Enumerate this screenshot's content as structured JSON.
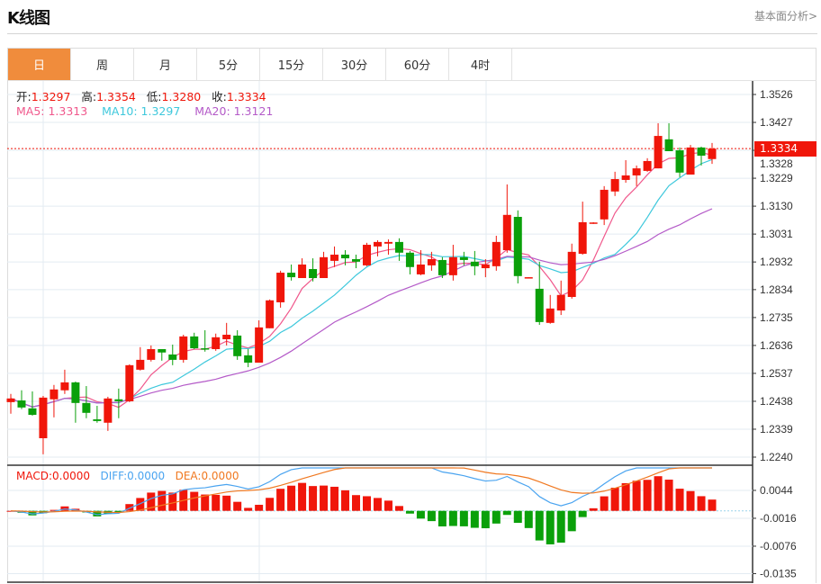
{
  "header": {
    "title": "K线图",
    "link": "基本面分析>"
  },
  "tabs": [
    {
      "label": "日",
      "active": true
    },
    {
      "label": "周"
    },
    {
      "label": "月"
    },
    {
      "label": "5分"
    },
    {
      "label": "15分"
    },
    {
      "label": "30分"
    },
    {
      "label": "60分"
    },
    {
      "label": "4时"
    }
  ],
  "ohlc_legend": {
    "open_label": "开:",
    "open": "1.3297",
    "high_label": "高:",
    "high": "1.3354",
    "low_label": "低:",
    "low": "1.3280",
    "close_label": "收:",
    "close": "1.3334"
  },
  "ma_legend": {
    "ma5": "MA5: 1.3313",
    "ma10": "MA10: 1.3297",
    "ma20": "MA20: 1.3121"
  },
  "macd_legend": {
    "macd": "MACD:0.0000",
    "diff": "DIFF:0.0000",
    "dea": "DEA:0.0000"
  },
  "current_price": "1.3334",
  "colors": {
    "up": "#f0160a",
    "down": "#0aa00a",
    "ma5": "#f0588c",
    "ma10": "#3ec8dc",
    "ma20": "#b45ac8",
    "diff": "#4aa4f0",
    "dea": "#f07820",
    "tab_active": "#f08c3c"
  },
  "chart_data": {
    "type": "candlestick",
    "title": "K线图",
    "price_axis": {
      "ticks": [
        "1.3526",
        "1.3427",
        "1.3328",
        "1.3229",
        "1.3130",
        "1.3031",
        "1.2932",
        "1.2834",
        "1.2735",
        "1.2636",
        "1.2537",
        "1.2438",
        "1.2339",
        "1.2240"
      ],
      "range": [
        1.224,
        1.3526
      ]
    },
    "macd_axis": {
      "ticks": [
        "0.0044",
        "-0.0016",
        "-0.0076",
        "-0.0135"
      ],
      "range": [
        -0.0155,
        0.006
      ]
    },
    "candles": [
      [
        1.2435,
        1.2464,
        1.2394,
        1.2448
      ],
      [
        1.2441,
        1.2477,
        1.241,
        1.2416
      ],
      [
        1.2413,
        1.2473,
        1.2387,
        1.239
      ],
      [
        1.2307,
        1.2457,
        1.225,
        1.2451
      ],
      [
        1.2445,
        1.2496,
        1.2381,
        1.248
      ],
      [
        1.2477,
        1.255,
        1.2464,
        1.2505
      ],
      [
        1.2505,
        1.2508,
        1.2362,
        1.2432
      ],
      [
        1.2432,
        1.2492,
        1.2378,
        1.2397
      ],
      [
        1.2374,
        1.2422,
        1.2362,
        1.2368
      ],
      [
        1.2362,
        1.2454,
        1.2333,
        1.2448
      ],
      [
        1.2445,
        1.2483,
        1.2378,
        1.2438
      ],
      [
        1.2438,
        1.2569,
        1.2435,
        1.2566
      ],
      [
        1.255,
        1.263,
        1.2547,
        1.2585
      ],
      [
        1.2585,
        1.2636,
        1.2579,
        1.2623
      ],
      [
        1.2623,
        1.2623,
        1.2582,
        1.2611
      ],
      [
        1.2604,
        1.2639,
        1.2566,
        1.2585
      ],
      [
        1.2585,
        1.2674,
        1.2575,
        1.2668
      ],
      [
        1.2668,
        1.2681,
        1.2623,
        1.2626
      ],
      [
        1.2626,
        1.269,
        1.2614,
        1.2623
      ],
      [
        1.2623,
        1.2678,
        1.2617,
        1.2665
      ],
      [
        1.2658,
        1.2716,
        1.2636,
        1.2674
      ],
      [
        1.2671,
        1.269,
        1.2585,
        1.2598
      ],
      [
        1.2601,
        1.2623,
        1.2559,
        1.2575
      ],
      [
        1.2575,
        1.2725,
        1.2575,
        1.27
      ],
      [
        1.2697,
        1.2799,
        1.2697,
        1.2796
      ],
      [
        1.2789,
        1.2901,
        1.277,
        1.2894
      ],
      [
        1.2894,
        1.2923,
        1.2866,
        1.2878
      ],
      [
        1.2875,
        1.2945,
        1.2875,
        1.2923
      ],
      [
        1.2907,
        1.2945,
        1.2863,
        1.2875
      ],
      [
        1.2875,
        1.2968,
        1.2875,
        1.2949
      ],
      [
        1.2936,
        1.2987,
        1.2914,
        1.2958
      ],
      [
        1.2958,
        1.2974,
        1.292,
        1.2945
      ],
      [
        1.2942,
        1.2958,
        1.291,
        1.2933
      ],
      [
        1.292,
        1.3,
        1.2917,
        1.2993
      ],
      [
        1.2987,
        1.3009,
        1.2952,
        1.3003
      ],
      [
        1.2997,
        1.3012,
        1.2958,
        1.3003
      ],
      [
        1.3003,
        1.3016,
        1.2936,
        1.2965
      ],
      [
        1.2965,
        1.2971,
        1.2888,
        1.2914
      ],
      [
        1.2888,
        1.2974,
        1.2885,
        1.2923
      ],
      [
        1.292,
        1.2968,
        1.2901,
        1.2942
      ],
      [
        1.2939,
        1.2949,
        1.2875,
        1.2885
      ],
      [
        1.2885,
        1.2993,
        1.2866,
        1.2949
      ],
      [
        1.2949,
        1.2968,
        1.292,
        1.2939
      ],
      [
        1.2933,
        1.2971,
        1.2885,
        1.2917
      ],
      [
        1.291,
        1.2942,
        1.2878,
        1.2923
      ],
      [
        1.2917,
        1.3025,
        1.2901,
        1.3003
      ],
      [
        1.2974,
        1.3207,
        1.2965,
        1.3099
      ],
      [
        1.3092,
        1.3115,
        1.2856,
        1.2882
      ],
      [
        1.2875,
        1.2878,
        1.2875,
        1.2878
      ],
      [
        1.2837,
        1.2933,
        1.2709,
        1.2719
      ],
      [
        1.2716,
        1.2815,
        1.2713,
        1.2767
      ],
      [
        1.276,
        1.2866,
        1.2744,
        1.2815
      ],
      [
        1.2808,
        1.2997,
        1.2802,
        1.2968
      ],
      [
        1.2961,
        1.3146,
        1.2958,
        1.3073
      ],
      [
        1.307,
        1.3073,
        1.3067,
        1.3072
      ],
      [
        1.3083,
        1.3201,
        1.3063,
        1.3188
      ],
      [
        1.3182,
        1.3252,
        1.3166,
        1.3226
      ],
      [
        1.3223,
        1.3293,
        1.3213,
        1.3239
      ],
      [
        1.3239,
        1.3274,
        1.3201,
        1.3264
      ],
      [
        1.3255,
        1.33,
        1.3252,
        1.329
      ],
      [
        1.3264,
        1.3424,
        1.3264,
        1.3379
      ],
      [
        1.3367,
        1.3424,
        1.3325,
        1.3325
      ],
      [
        1.3328,
        1.3338,
        1.3233,
        1.3249
      ],
      [
        1.3242,
        1.3347,
        1.3242,
        1.3338
      ],
      [
        1.3338,
        1.3341,
        1.3274,
        1.3309
      ],
      [
        1.3297,
        1.3354,
        1.328,
        1.3334
      ]
    ],
    "candle_format": [
      "open",
      "high",
      "low",
      "close"
    ],
    "indicators": [
      "MA5",
      "MA10",
      "MA20",
      "MACD(12,26,9)"
    ]
  }
}
